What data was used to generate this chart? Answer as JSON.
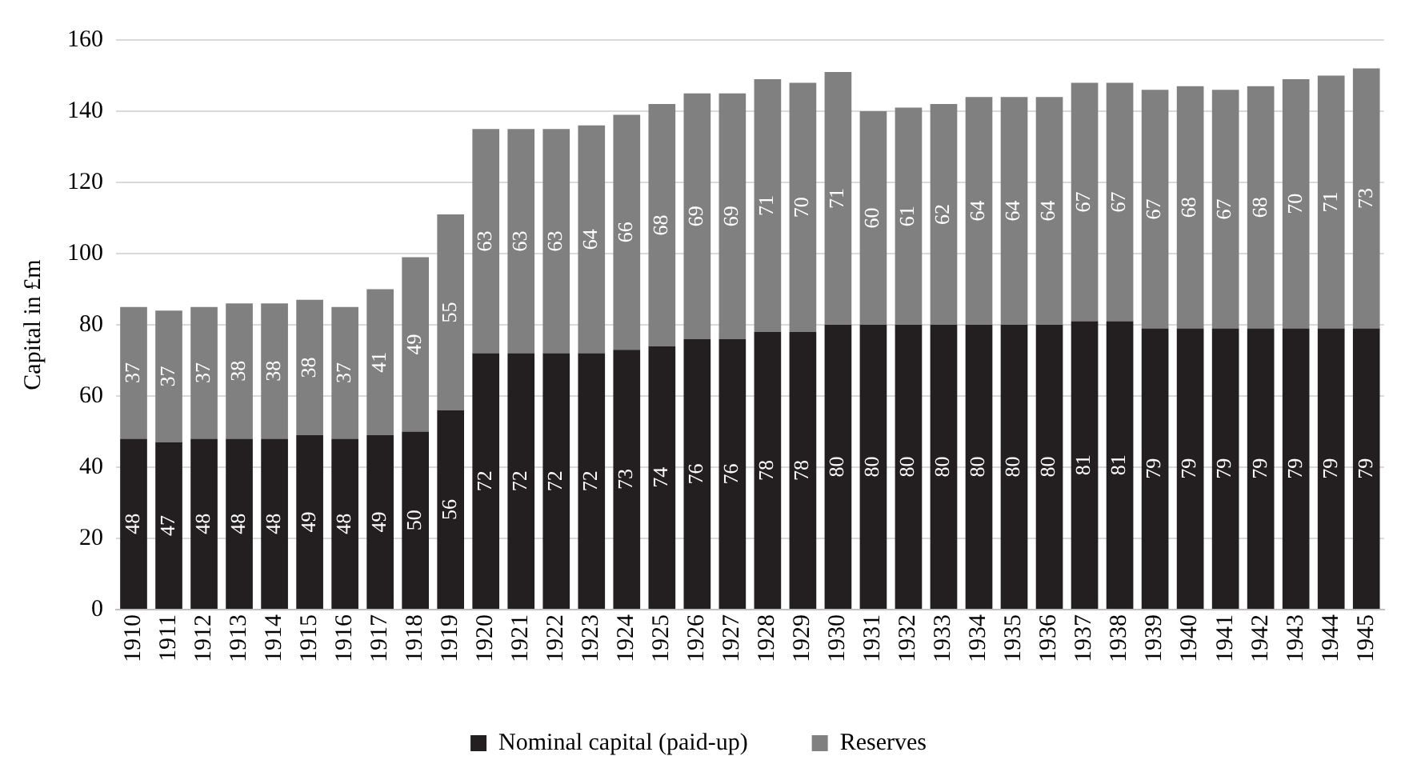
{
  "chart_data": {
    "type": "bar",
    "stacked": true,
    "ylabel": "Capital in £m",
    "categories": [
      "1910",
      "1911",
      "1912",
      "1913",
      "1914",
      "1915",
      "1916",
      "1917",
      "1918",
      "1919",
      "1920",
      "1921",
      "1922",
      "1923",
      "1924",
      "1925",
      "1926",
      "1927",
      "1928",
      "1929",
      "1930",
      "1931",
      "1932",
      "1933",
      "1934",
      "1935",
      "1936",
      "1937",
      "1938",
      "1939",
      "1940",
      "1941",
      "1942",
      "1943",
      "1944",
      "1945"
    ],
    "series": [
      {
        "name": "Nominal capital (paid-up)",
        "color": "#231f20",
        "values": [
          48,
          47,
          48,
          48,
          48,
          49,
          48,
          49,
          50,
          56,
          72,
          72,
          72,
          72,
          73,
          74,
          76,
          76,
          78,
          78,
          80,
          80,
          80,
          80,
          80,
          80,
          80,
          81,
          81,
          79,
          79,
          79,
          79,
          79,
          79,
          79
        ]
      },
      {
        "name": "Reserves",
        "color": "#808080",
        "values": [
          37,
          37,
          37,
          38,
          38,
          38,
          37,
          41,
          49,
          55,
          63,
          63,
          63,
          64,
          66,
          68,
          69,
          69,
          71,
          70,
          71,
          60,
          61,
          62,
          64,
          64,
          64,
          67,
          67,
          67,
          68,
          67,
          68,
          70,
          71,
          73
        ]
      }
    ],
    "ylim": [
      0,
      160
    ],
    "yticks": [
      0,
      20,
      40,
      60,
      80,
      100,
      120,
      140,
      160
    ],
    "grid": "y",
    "legend": "bottom",
    "data_labels": true
  }
}
